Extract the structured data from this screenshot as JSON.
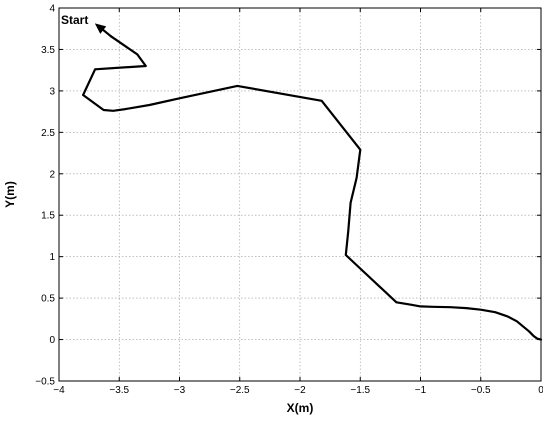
{
  "chart_data": {
    "type": "line",
    "title": "",
    "xlabel": "X(m)",
    "ylabel": "Y(m)",
    "xlim": [
      -4,
      0
    ],
    "ylim": [
      -0.5,
      4
    ],
    "xticks": [
      -4,
      -3.5,
      -3,
      -2.5,
      -2,
      -1.5,
      -1,
      -0.5,
      0
    ],
    "xtick_labels": [
      "−4",
      "−3.5",
      "−3",
      "−2.5",
      "−2",
      "−1.5",
      "−1",
      "−0.5",
      "0"
    ],
    "yticks": [
      -0.5,
      0,
      0.5,
      1,
      1.5,
      2,
      2.5,
      3,
      3.5,
      4
    ],
    "ytick_labels": [
      "−0.5",
      "0",
      "0.5",
      "1",
      "1.5",
      "2",
      "2.5",
      "3",
      "3.5",
      "4"
    ],
    "grid": true,
    "legend": "none",
    "line_color": "#000000",
    "series": [
      {
        "x": [
          0.0,
          -0.03,
          -0.06,
          -0.1,
          -0.15,
          -0.2,
          -0.28,
          -0.38,
          -0.5,
          -0.62,
          -0.75,
          -0.9,
          -1.0,
          -1.08,
          -1.2,
          -1.62,
          -1.6,
          -1.58,
          -1.53,
          -1.5,
          -1.82,
          -2.52,
          -3.0,
          -3.25,
          -3.45,
          -3.55,
          -3.63,
          -3.8,
          -3.7,
          -3.28,
          -3.35,
          -3.57
        ],
        "y": [
          0.0,
          0.01,
          0.04,
          0.1,
          0.16,
          0.22,
          0.28,
          0.33,
          0.36,
          0.38,
          0.39,
          0.395,
          0.4,
          0.42,
          0.45,
          1.02,
          1.3,
          1.65,
          1.95,
          2.29,
          2.88,
          3.06,
          2.91,
          2.83,
          2.78,
          2.76,
          2.77,
          2.95,
          3.26,
          3.3,
          3.44,
          3.66
        ]
      }
    ],
    "annotations": [
      {
        "text": "Start",
        "x": -3.6,
        "y": 3.86
      }
    ]
  }
}
